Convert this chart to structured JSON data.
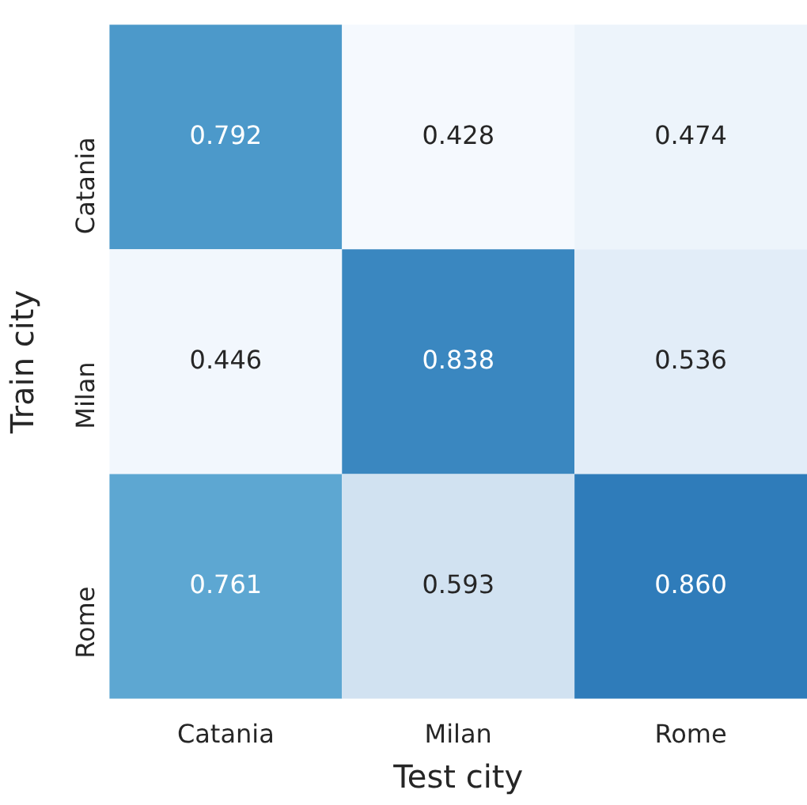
{
  "chart_data": {
    "type": "heatmap",
    "xlabel": "Test city",
    "ylabel": "Train city",
    "categories": [
      "Catania",
      "Milan",
      "Rome"
    ],
    "y_categories": [
      "Catania",
      "Milan",
      "Rome"
    ],
    "cells": [
      [
        0.792,
        0.428,
        0.474
      ],
      [
        0.446,
        0.838,
        0.536
      ],
      [
        0.761,
        0.593,
        0.86
      ]
    ],
    "cell_labels": [
      [
        "0.792",
        "0.428",
        "0.474"
      ],
      [
        "0.446",
        "0.838",
        "0.536"
      ],
      [
        "0.761",
        "0.593",
        "0.860"
      ]
    ]
  }
}
